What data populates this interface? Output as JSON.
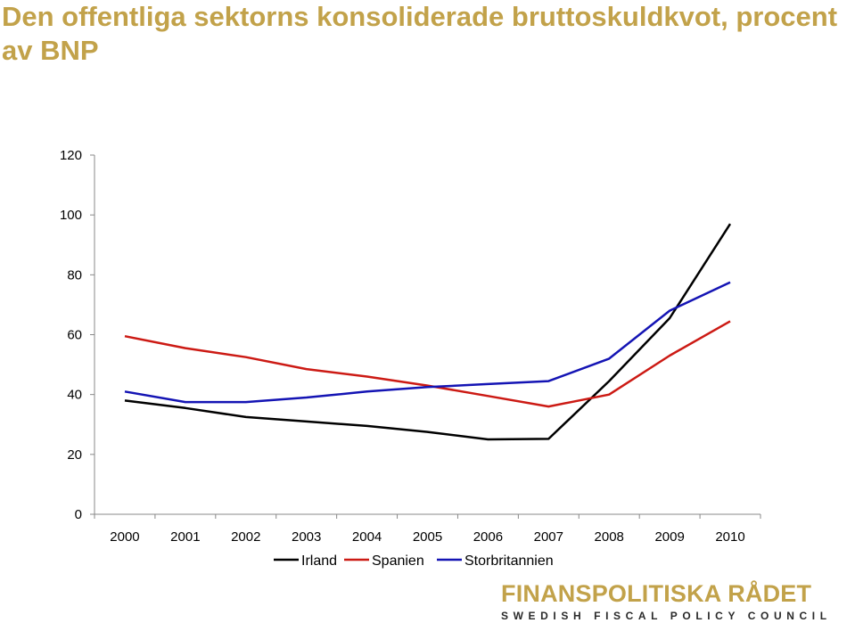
{
  "title": "Den offentliga sektorns konsoliderade bruttoskuldkvot, procent av BNP",
  "colors": {
    "title": "#c2a24a",
    "irland": "#000000",
    "spanien": "#cc1a14",
    "storbritannien": "#1414b4"
  },
  "chart_data": {
    "type": "line",
    "title": "Den offentliga sektorns konsoliderade bruttoskuldkvot, procent av BNP",
    "xlabel": "",
    "ylabel": "",
    "ylim": [
      0,
      120
    ],
    "yticks": [
      "0",
      "20",
      "40",
      "60",
      "80",
      "100",
      "120"
    ],
    "grid": false,
    "legend_position": "bottom",
    "categories": [
      "2000",
      "2001",
      "2002",
      "2003",
      "2004",
      "2005",
      "2006",
      "2007",
      "2008",
      "2009",
      "2010"
    ],
    "series": [
      {
        "name": "Irland",
        "color": "#000000",
        "values": [
          38,
          35.5,
          32.5,
          31,
          29.5,
          27.5,
          25,
          25.2,
          44.5,
          65.5,
          97
        ]
      },
      {
        "name": "Spanien",
        "color": "#cc1a14",
        "values": [
          59.5,
          55.5,
          52.5,
          48.5,
          46,
          43,
          39.5,
          36,
          40,
          53,
          64.5
        ]
      },
      {
        "name": "Storbritannien",
        "color": "#1414b4",
        "values": [
          41,
          37.5,
          37.5,
          39,
          41,
          42.5,
          43.5,
          44.5,
          52,
          68,
          77.5
        ]
      }
    ]
  },
  "logo": {
    "main": "FINANSPOLITISKA RÅDET",
    "sub": "SWEDISH FISCAL POLICY COUNCIL"
  }
}
